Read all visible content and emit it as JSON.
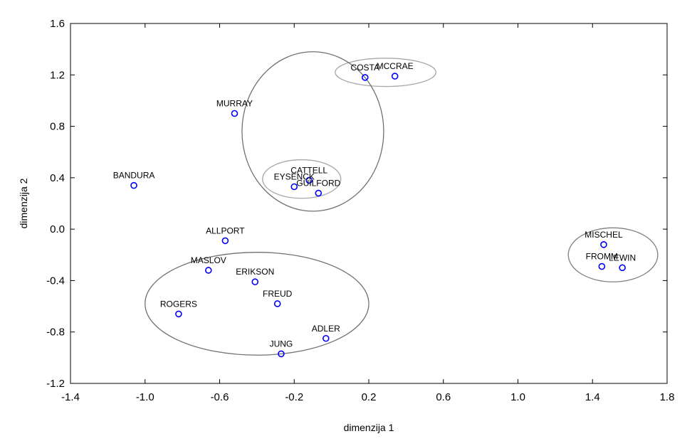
{
  "chart_data": {
    "type": "scatter",
    "title": "",
    "xlabel": "dimenzija 1",
    "ylabel": "dimenzija 2",
    "xlim": [
      -1.4,
      1.8
    ],
    "ylim": [
      -1.2,
      1.6
    ],
    "xticks": [
      "-1.4",
      "-1.0",
      "-0.6",
      "-0.2",
      "0.2",
      "0.6",
      "1.0",
      "1.4",
      "1.8"
    ],
    "yticks": [
      "-1.2",
      "-0.8",
      "-0.4",
      "0.0",
      "0.4",
      "0.8",
      "1.2",
      "1.6"
    ],
    "grid": false,
    "marker_color": "#0000ff",
    "points": [
      {
        "label": "COSTA",
        "x": 0.18,
        "y": 1.18
      },
      {
        "label": "MCCRAE",
        "x": 0.34,
        "y": 1.19
      },
      {
        "label": "MURRAY",
        "x": -0.52,
        "y": 0.9
      },
      {
        "label": "BANDURA",
        "x": -1.06,
        "y": 0.34
      },
      {
        "label": "CATTELL",
        "x": -0.12,
        "y": 0.38
      },
      {
        "label": "EYSENCK",
        "x": -0.2,
        "y": 0.33
      },
      {
        "label": "GUILFORD",
        "x": -0.07,
        "y": 0.28
      },
      {
        "label": "ALLPORT",
        "x": -0.57,
        "y": -0.09
      },
      {
        "label": "MASLOV",
        "x": -0.66,
        "y": -0.32
      },
      {
        "label": "ERIKSON",
        "x": -0.41,
        "y": -0.41
      },
      {
        "label": "FREUD",
        "x": -0.29,
        "y": -0.58
      },
      {
        "label": "ROGERS",
        "x": -0.82,
        "y": -0.66
      },
      {
        "label": "ADLER",
        "x": -0.03,
        "y": -0.85
      },
      {
        "label": "JUNG",
        "x": -0.27,
        "y": -0.97
      },
      {
        "label": "MISCHEL",
        "x": 1.46,
        "y": -0.12
      },
      {
        "label": "FROMM",
        "x": 1.45,
        "y": -0.29
      },
      {
        "label": "LEWIN",
        "x": 1.56,
        "y": -0.3
      }
    ],
    "clusters": [
      {
        "cx": 0.29,
        "cy": 1.22,
        "rx": 0.27,
        "ry": 0.11,
        "color": "#a8a8a8"
      },
      {
        "cx": -0.1,
        "cy": 0.76,
        "rx": 0.38,
        "ry": 0.62,
        "color": "#707070"
      },
      {
        "cx": -0.16,
        "cy": 0.39,
        "rx": 0.21,
        "ry": 0.15,
        "color": "#a8a8a8"
      },
      {
        "cx": -0.4,
        "cy": -0.58,
        "rx": 0.6,
        "ry": 0.4,
        "color": "#707070"
      },
      {
        "cx": 1.51,
        "cy": -0.2,
        "rx": 0.24,
        "ry": 0.21,
        "color": "#808080"
      }
    ]
  }
}
